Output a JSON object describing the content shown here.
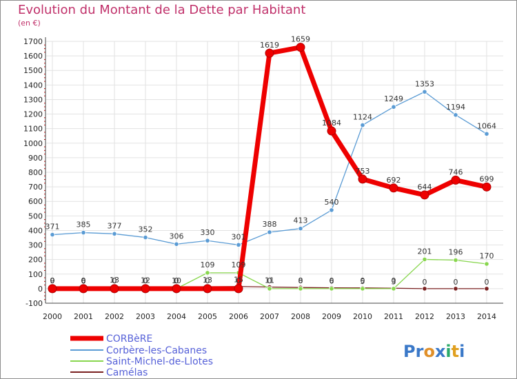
{
  "chart_data": {
    "type": "line",
    "title": "Evolution du Montant de la Dette par Habitant",
    "subtitle": "(en €)",
    "xlabel": "",
    "ylabel": "",
    "categories": [
      "2000",
      "2001",
      "2002",
      "2003",
      "2004",
      "2005",
      "2006",
      "2007",
      "2008",
      "2009",
      "2010",
      "2011",
      "2012",
      "2013",
      "2014"
    ],
    "ylim": [
      -100,
      1700
    ],
    "yticks": [
      -100,
      0,
      100,
      200,
      300,
      400,
      500,
      600,
      700,
      800,
      900,
      1000,
      1100,
      1200,
      1300,
      1400,
      1500,
      1600,
      1700
    ],
    "grid": true,
    "legend_position": "bottom-left",
    "series": [
      {
        "name": "CORBèRE",
        "color": "#ee0000",
        "values": [
          0,
          0,
          0,
          0,
          0,
          0,
          0,
          1619,
          1659,
          1084,
          753,
          692,
          644,
          746,
          699
        ],
        "labels": [
          "0",
          "0",
          "0",
          "0",
          "0",
          "0",
          "0",
          "1619",
          "1659",
          "1084",
          "753",
          "692",
          "644",
          "746",
          "699"
        ]
      },
      {
        "name": "Corbère-les-Cabanes",
        "color": "#5a9bd4",
        "values": [
          371,
          385,
          377,
          352,
          306,
          330,
          301,
          388,
          413,
          540,
          1124,
          1249,
          1353,
          1194,
          1064
        ],
        "labels": [
          "371",
          "385",
          "377",
          "352",
          "306",
          "330",
          "301",
          "388",
          "413",
          "540",
          "1124",
          "1249",
          "1353",
          "1194",
          "1064"
        ]
      },
      {
        "name": "Saint-Michel-de-Llotes",
        "color": "#88d64e",
        "values": [
          0,
          0,
          0,
          0,
          0,
          109,
          109,
          0,
          0,
          0,
          0,
          0,
          201,
          196,
          170
        ],
        "labels": [
          "0",
          "0",
          "0",
          "0",
          "0",
          "109",
          "109",
          "0",
          "0",
          "0",
          "0",
          "0",
          "201",
          "196",
          "170"
        ]
      },
      {
        "name": "Camélas",
        "color": "#7a2020",
        "values": [
          9,
          6,
          13,
          12,
          10,
          13,
          15,
          11,
          8,
          6,
          5,
          3,
          0,
          0,
          0
        ],
        "labels": [
          "9",
          "6",
          "13",
          "12",
          "10",
          "13",
          "15",
          "11",
          "8",
          "6",
          "5",
          "3",
          "0",
          "0",
          "0"
        ]
      }
    ]
  },
  "branding": {
    "logo_text": "Proxiti"
  }
}
